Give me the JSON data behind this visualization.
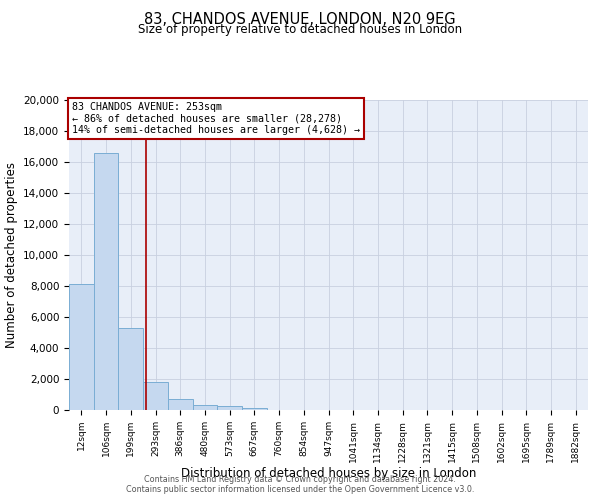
{
  "title": "83, CHANDOS AVENUE, LONDON, N20 9EG",
  "subtitle": "Size of property relative to detached houses in London",
  "xlabel": "Distribution of detached houses by size in London",
  "ylabel": "Number of detached properties",
  "bar_color": "#c5d8ef",
  "bar_edge_color": "#7aadd4",
  "background_color": "#e8eef8",
  "grid_color": "#c8d0e0",
  "categories": [
    "12sqm",
    "106sqm",
    "199sqm",
    "293sqm",
    "386sqm",
    "480sqm",
    "573sqm",
    "667sqm",
    "760sqm",
    "854sqm",
    "947sqm",
    "1041sqm",
    "1134sqm",
    "1228sqm",
    "1321sqm",
    "1415sqm",
    "1508sqm",
    "1602sqm",
    "1695sqm",
    "1789sqm",
    "1882sqm"
  ],
  "values": [
    8100,
    16550,
    5300,
    1800,
    700,
    320,
    250,
    100,
    0,
    0,
    0,
    0,
    0,
    0,
    0,
    0,
    0,
    0,
    0,
    0,
    0
  ],
  "ylim": [
    0,
    20000
  ],
  "yticks": [
    0,
    2000,
    4000,
    6000,
    8000,
    10000,
    12000,
    14000,
    16000,
    18000,
    20000
  ],
  "pct_smaller": 86,
  "pct_larger": 14,
  "n_smaller": 28278,
  "n_larger": 4628,
  "vline_x_index": 2.62,
  "footer_line1": "Contains HM Land Registry data © Crown copyright and database right 2024.",
  "footer_line2": "Contains public sector information licensed under the Open Government Licence v3.0."
}
